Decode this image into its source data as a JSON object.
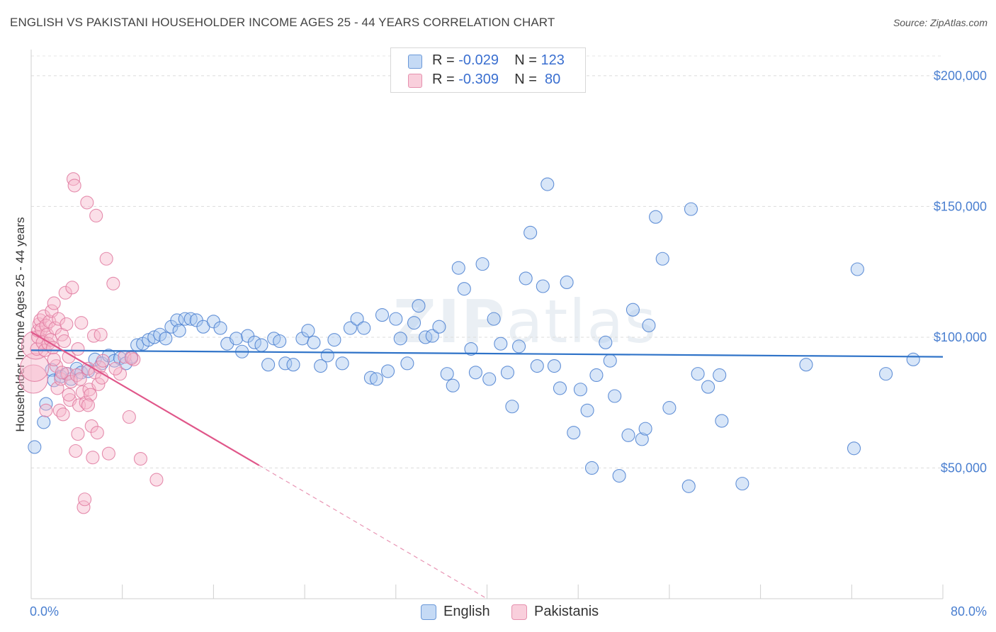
{
  "header": {
    "title": "ENGLISH VS PAKISTANI HOUSEHOLDER INCOME AGES 25 - 44 YEARS CORRELATION CHART",
    "source": "Source: ZipAtlas.com"
  },
  "watermark": {
    "text_zip": "ZIP",
    "text_atlas": "atlas"
  },
  "legend": {
    "rows": [
      {
        "r_label": "R = ",
        "r_value": "-0.029",
        "n_label": "N = ",
        "n_value": "123",
        "color": "#a8c8f0"
      },
      {
        "r_label": "R = ",
        "r_value": "-0.309",
        "n_label": "N = ",
        "n_value": " 80",
        "color": "#f6b9cb"
      }
    ]
  },
  "bottom_legend": [
    {
      "label": "English",
      "color": "#a8c8f0"
    },
    {
      "label": "Pakistanis",
      "color": "#f6b9cb"
    }
  ],
  "chart_data": {
    "type": "scatter",
    "title": "ENGLISH VS PAKISTANI HOUSEHOLDER INCOME AGES 25 - 44 YEARS CORRELATION CHART",
    "xlabel": "",
    "ylabel": "Householder Income Ages 25 - 44 years",
    "xlim": [
      0,
      80
    ],
    "ylim": [
      0,
      210000
    ],
    "x_tick_labels": [
      {
        "value": 0,
        "label": "0.0%"
      },
      {
        "value": 80,
        "label": "80.0%"
      }
    ],
    "y_ticks": [
      {
        "value": 50000,
        "label": "$50,000"
      },
      {
        "value": 100000,
        "label": "$100,000"
      },
      {
        "value": 150000,
        "label": "$150,000"
      },
      {
        "value": 200000,
        "label": "$200,000"
      }
    ],
    "grid": true,
    "legend_position": "top-center",
    "series": [
      {
        "name": "English",
        "color": "#4a7fd0",
        "fill": "#a8c8f0",
        "trend": {
          "x": [
            0,
            80
          ],
          "y": [
            95000,
            92500
          ]
        },
        "points": [
          [
            0.3,
            58000
          ],
          [
            1.1,
            67500
          ],
          [
            1.3,
            74500
          ],
          [
            1.8,
            87500
          ],
          [
            2.0,
            83500
          ],
          [
            2.6,
            85000
          ],
          [
            3.1,
            86000
          ],
          [
            3.5,
            84000
          ],
          [
            4.0,
            88000
          ],
          [
            4.4,
            86500
          ],
          [
            5.0,
            87000
          ],
          [
            5.6,
            91500
          ],
          [
            6.2,
            90000
          ],
          [
            6.8,
            93000
          ],
          [
            7.3,
            91000
          ],
          [
            7.8,
            92000
          ],
          [
            8.3,
            90000
          ],
          [
            8.8,
            92500
          ],
          [
            9.3,
            97000
          ],
          [
            9.8,
            97500
          ],
          [
            10.3,
            99000
          ],
          [
            10.8,
            100000
          ],
          [
            11.3,
            101000
          ],
          [
            11.8,
            99500
          ],
          [
            12.3,
            104000
          ],
          [
            12.8,
            106500
          ],
          [
            13.0,
            102500
          ],
          [
            13.5,
            107000
          ],
          [
            14.0,
            107000
          ],
          [
            14.5,
            106500
          ],
          [
            15.1,
            104000
          ],
          [
            16.0,
            106000
          ],
          [
            16.6,
            103500
          ],
          [
            17.2,
            97500
          ],
          [
            18.0,
            99500
          ],
          [
            18.5,
            94500
          ],
          [
            19.0,
            100500
          ],
          [
            19.6,
            98000
          ],
          [
            20.2,
            97000
          ],
          [
            20.8,
            89500
          ],
          [
            21.3,
            99500
          ],
          [
            21.8,
            98500
          ],
          [
            22.3,
            90000
          ],
          [
            23.0,
            89500
          ],
          [
            23.8,
            99500
          ],
          [
            24.3,
            102500
          ],
          [
            24.8,
            98000
          ],
          [
            25.4,
            89000
          ],
          [
            26.0,
            93000
          ],
          [
            26.6,
            99000
          ],
          [
            27.3,
            90000
          ],
          [
            28.0,
            103500
          ],
          [
            28.6,
            107000
          ],
          [
            29.2,
            103500
          ],
          [
            29.8,
            84500
          ],
          [
            30.3,
            84000
          ],
          [
            30.8,
            108500
          ],
          [
            31.3,
            87000
          ],
          [
            32.0,
            107000
          ],
          [
            32.4,
            99500
          ],
          [
            33.0,
            90000
          ],
          [
            33.6,
            105500
          ],
          [
            34.0,
            112000
          ],
          [
            34.6,
            100000
          ],
          [
            35.2,
            100500
          ],
          [
            35.8,
            104000
          ],
          [
            36.5,
            86000
          ],
          [
            37.0,
            81500
          ],
          [
            37.5,
            126500
          ],
          [
            38.0,
            118500
          ],
          [
            38.6,
            95500
          ],
          [
            39.0,
            86500
          ],
          [
            39.6,
            128000
          ],
          [
            40.2,
            84000
          ],
          [
            40.6,
            107000
          ],
          [
            41.2,
            97500
          ],
          [
            41.8,
            86500
          ],
          [
            42.2,
            73500
          ],
          [
            42.8,
            96500
          ],
          [
            43.4,
            122500
          ],
          [
            43.8,
            140000
          ],
          [
            44.4,
            89000
          ],
          [
            44.9,
            119500
          ],
          [
            45.3,
            158500
          ],
          [
            45.9,
            89000
          ],
          [
            46.4,
            80500
          ],
          [
            47.0,
            121000
          ],
          [
            47.6,
            63500
          ],
          [
            48.2,
            80000
          ],
          [
            48.8,
            72000
          ],
          [
            49.2,
            50000
          ],
          [
            49.6,
            85500
          ],
          [
            50.4,
            98000
          ],
          [
            50.8,
            91000
          ],
          [
            51.2,
            77500
          ],
          [
            51.6,
            47000
          ],
          [
            52.4,
            62500
          ],
          [
            52.8,
            110500
          ],
          [
            53.6,
            61000
          ],
          [
            53.9,
            65000
          ],
          [
            54.2,
            104500
          ],
          [
            54.8,
            146000
          ],
          [
            55.4,
            130000
          ],
          [
            56.0,
            73000
          ],
          [
            57.7,
            43000
          ],
          [
            57.9,
            149000
          ],
          [
            58.5,
            86000
          ],
          [
            59.4,
            81000
          ],
          [
            60.4,
            85500
          ],
          [
            60.6,
            68000
          ],
          [
            62.4,
            44000
          ],
          [
            68.0,
            89500
          ],
          [
            72.2,
            57500
          ],
          [
            72.5,
            126000
          ],
          [
            75.0,
            86000
          ],
          [
            77.4,
            91500
          ]
        ]
      },
      {
        "name": "Pakistanis",
        "color": "#e07aa0",
        "fill": "#f6b9cb",
        "trend": {
          "x": [
            0,
            40
          ],
          "y": [
            102000,
            0
          ]
        },
        "points": [
          [
            0.2,
            84000
          ],
          [
            0.3,
            88500
          ],
          [
            0.4,
            97000
          ],
          [
            0.5,
            95500
          ],
          [
            0.6,
            100000
          ],
          [
            0.6,
            102500
          ],
          [
            0.7,
            105000
          ],
          [
            0.8,
            106500
          ],
          [
            0.9,
            103000
          ],
          [
            1.0,
            98000
          ],
          [
            1.1,
            108000
          ],
          [
            1.2,
            95000
          ],
          [
            1.3,
            104500
          ],
          [
            1.4,
            101000
          ],
          [
            1.5,
            97500
          ],
          [
            1.6,
            106000
          ],
          [
            1.7,
            99000
          ],
          [
            1.8,
            110000
          ],
          [
            1.9,
            96000
          ],
          [
            2.0,
            113000
          ],
          [
            2.1,
            103500
          ],
          [
            2.2,
            89000
          ],
          [
            2.3,
            80500
          ],
          [
            2.4,
            107000
          ],
          [
            2.5,
            72000
          ],
          [
            2.6,
            84000
          ],
          [
            2.7,
            101000
          ],
          [
            2.8,
            70500
          ],
          [
            2.9,
            98500
          ],
          [
            3.0,
            117000
          ],
          [
            3.1,
            105000
          ],
          [
            3.2,
            86000
          ],
          [
            3.3,
            92500
          ],
          [
            3.4,
            76000
          ],
          [
            3.5,
            83000
          ],
          [
            3.6,
            119000
          ],
          [
            3.7,
            160500
          ],
          [
            3.8,
            158000
          ],
          [
            3.9,
            56500
          ],
          [
            4.0,
            85500
          ],
          [
            4.1,
            95500
          ],
          [
            4.2,
            74000
          ],
          [
            4.3,
            84000
          ],
          [
            4.4,
            105500
          ],
          [
            4.5,
            79000
          ],
          [
            4.6,
            35000
          ],
          [
            4.7,
            38000
          ],
          [
            4.8,
            75000
          ],
          [
            4.9,
            151500
          ],
          [
            5.0,
            88000
          ],
          [
            5.1,
            80000
          ],
          [
            5.2,
            78000
          ],
          [
            5.3,
            66000
          ],
          [
            5.4,
            54000
          ],
          [
            5.5,
            100500
          ],
          [
            5.6,
            86500
          ],
          [
            5.7,
            146500
          ],
          [
            5.8,
            63500
          ],
          [
            5.9,
            82000
          ],
          [
            6.0,
            88500
          ],
          [
            6.1,
            101000
          ],
          [
            6.3,
            91000
          ],
          [
            6.6,
            130000
          ],
          [
            6.8,
            55500
          ],
          [
            7.2,
            120500
          ],
          [
            7.8,
            86000
          ],
          [
            8.2,
            92500
          ],
          [
            8.6,
            69500
          ],
          [
            9.0,
            91500
          ],
          [
            9.6,
            53500
          ],
          [
            11.0,
            45500
          ],
          [
            1.3,
            72000
          ],
          [
            2.0,
            91500
          ],
          [
            2.7,
            86500
          ],
          [
            3.3,
            78000
          ],
          [
            4.1,
            63000
          ],
          [
            5.0,
            74000
          ],
          [
            6.2,
            84500
          ],
          [
            7.4,
            88000
          ],
          [
            8.8,
            92000
          ]
        ]
      }
    ]
  }
}
